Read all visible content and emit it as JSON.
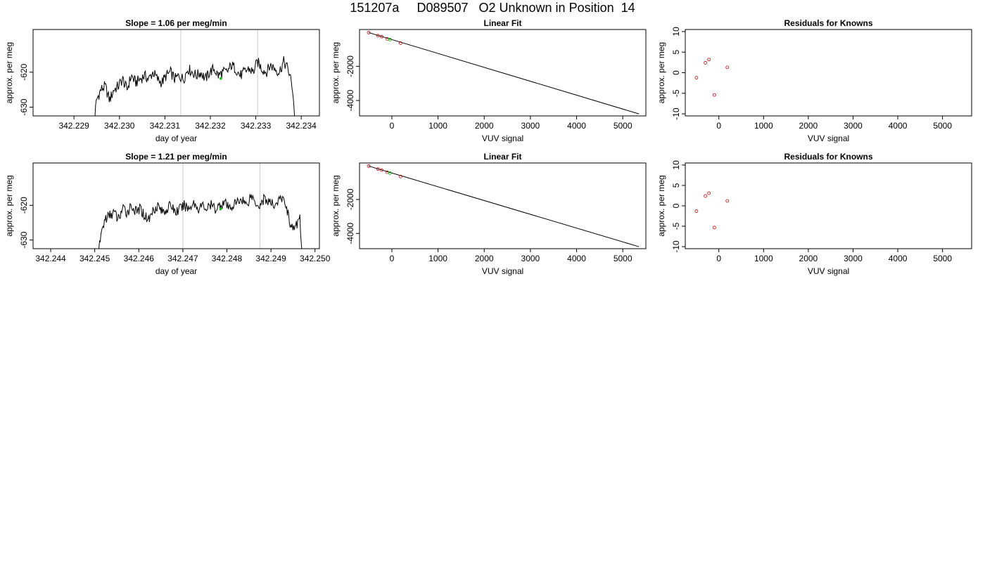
{
  "page": {
    "title": "151207a     D089507   O2 Unknown in Position  14"
  },
  "colors": {
    "line": "#000000",
    "marker_vline": "#cccccc",
    "known_points": "#cc0000",
    "unknown_point": "#00cc00",
    "frame": "#000000"
  },
  "chart_data": [
    {
      "id": "ts1",
      "type": "line",
      "title": "Slope =  1.06  per meg/min",
      "xlabel": "day of year",
      "ylabel": "approx. per meg",
      "xlim": [
        342.2281,
        342.2344
      ],
      "ylim": [
        -632.5,
        -607.8
      ],
      "xticks": [
        342.229,
        342.23,
        342.231,
        342.232,
        342.233,
        342.234
      ],
      "xtick_labels": [
        "342.229",
        "342.230",
        "342.231",
        "342.232",
        "342.233",
        "342.234"
      ],
      "yticks": [
        -630,
        -620
      ],
      "ytick_labels": [
        "-630",
        "-620"
      ],
      "x_start": 342.2294,
      "x_end": 342.2339,
      "vlines": [
        342.23135,
        342.23304
      ],
      "highlight_point": {
        "x": 342.23223,
        "y": -621.8
      },
      "profile": [
        -640,
        -628,
        -625,
        -624,
        -628,
        -625,
        -624,
        -622,
        -625,
        -621,
        -623,
        -622,
        -621,
        -622,
        -620,
        -622,
        -623,
        -621,
        -620,
        -622,
        -621,
        -622,
        -619,
        -620,
        -621,
        -620,
        -622,
        -620,
        -619,
        -621,
        -620,
        -620,
        -618,
        -619,
        -621,
        -620,
        -619,
        -620,
        -617,
        -619,
        -620,
        -618,
        -619,
        -620,
        -617,
        -619,
        -624,
        -640
      ],
      "grid": false
    },
    {
      "id": "fit1",
      "type": "scatter",
      "title": "Linear Fit",
      "xlabel": "VUV signal",
      "ylabel": "approx. per meg",
      "xlim": [
        -700,
        5500
      ],
      "ylim": [
        -4900,
        150
      ],
      "xticks": [
        0,
        1000,
        2000,
        3000,
        4000,
        5000
      ],
      "xtick_labels": [
        "0",
        "1000",
        "2000",
        "3000",
        "4000",
        "5000"
      ],
      "yticks": [
        -4000,
        -2000
      ],
      "ytick_labels": [
        "-4000",
        "-2000"
      ],
      "fit_line": {
        "x": [
          -500,
          5350
        ],
        "y": [
          -33,
          -4783
        ]
      },
      "known_points": [
        {
          "x": -500,
          "y": -33
        },
        {
          "x": -300,
          "y": -208
        },
        {
          "x": -220,
          "y": -268
        },
        {
          "x": -100,
          "y": -398
        },
        {
          "x": 190,
          "y": -648
        }
      ],
      "unknown_points": [
        {
          "x": -40,
          "y": -440
        }
      ],
      "grid": false
    },
    {
      "id": "res1",
      "type": "scatter",
      "title": "Residuals for Knowns",
      "xlabel": "VUV signal",
      "ylabel": "approx. per meg",
      "xlim": [
        -750,
        5650
      ],
      "ylim": [
        -10.5,
        10.5
      ],
      "xticks": [
        0,
        1000,
        2000,
        3000,
        4000,
        5000
      ],
      "xtick_labels": [
        "0",
        "1000",
        "2000",
        "3000",
        "4000",
        "5000"
      ],
      "yticks": [
        -10,
        -5,
        0,
        5,
        10
      ],
      "ytick_labels": [
        "-10",
        "-5",
        "0",
        "5",
        "10"
      ],
      "points": [
        {
          "x": -500,
          "y": -1.2
        },
        {
          "x": -300,
          "y": 2.4
        },
        {
          "x": -220,
          "y": 3.2
        },
        {
          "x": -100,
          "y": -5.4
        },
        {
          "x": 190,
          "y": 1.3
        }
      ],
      "grid": false
    },
    {
      "id": "ts2",
      "type": "line",
      "title": "Slope =  1.21  per meg/min",
      "xlabel": "day of year",
      "ylabel": "approx. per meg",
      "xlim": [
        342.2436,
        342.2501
      ],
      "ylim": [
        -632.5,
        -607.8
      ],
      "xticks": [
        342.244,
        342.245,
        342.246,
        342.247,
        342.248,
        342.249,
        342.25
      ],
      "xtick_labels": [
        "342.244",
        "342.245",
        "342.246",
        "342.247",
        "342.248",
        "342.249",
        "342.250"
      ],
      "yticks": [
        -630,
        -620
      ],
      "ytick_labels": [
        "-630",
        "-620"
      ],
      "x_start": 342.24503,
      "x_end": 342.24975,
      "vlines": [
        342.247,
        342.24875
      ],
      "highlight_point": {
        "x": 342.24786,
        "y": -621
      },
      "profile": [
        -640,
        -629,
        -624,
        -623,
        -622,
        -624,
        -621,
        -622,
        -620,
        -622,
        -621,
        -623,
        -624,
        -621,
        -620,
        -622,
        -621,
        -620,
        -622,
        -621,
        -620,
        -621,
        -619,
        -621,
        -620,
        -621,
        -620,
        -621,
        -620,
        -619,
        -621,
        -620,
        -619,
        -618,
        -620,
        -617,
        -619,
        -620,
        -618,
        -619,
        -620,
        -619,
        -618,
        -620,
        -626,
        -627,
        -623,
        -640
      ],
      "grid": false
    },
    {
      "id": "fit2",
      "type": "scatter",
      "title": "Linear Fit",
      "xlabel": "VUV signal",
      "ylabel": "approx. per meg",
      "xlim": [
        -700,
        5500
      ],
      "ylim": [
        -4900,
        150
      ],
      "xticks": [
        0,
        1000,
        2000,
        3000,
        4000,
        5000
      ],
      "xtick_labels": [
        "0",
        "1000",
        "2000",
        "3000",
        "4000",
        "5000"
      ],
      "yticks": [
        -4000,
        -2000
      ],
      "ytick_labels": [
        "-4000",
        "-2000"
      ],
      "fit_line": {
        "x": [
          -500,
          5350
        ],
        "y": [
          -33,
          -4783
        ]
      },
      "known_points": [
        {
          "x": -500,
          "y": -33
        },
        {
          "x": -300,
          "y": -208
        },
        {
          "x": -220,
          "y": -268
        },
        {
          "x": -100,
          "y": -398
        },
        {
          "x": 190,
          "y": -648
        }
      ],
      "unknown_points": [
        {
          "x": -40,
          "y": -440
        }
      ],
      "grid": false
    },
    {
      "id": "res2",
      "type": "scatter",
      "title": "Residuals for Knowns",
      "xlabel": "VUV signal",
      "ylabel": "approx. per meg",
      "xlim": [
        -750,
        5650
      ],
      "ylim": [
        -10.5,
        10.5
      ],
      "xticks": [
        0,
        1000,
        2000,
        3000,
        4000,
        5000
      ],
      "xtick_labels": [
        "0",
        "1000",
        "2000",
        "3000",
        "4000",
        "5000"
      ],
      "yticks": [
        -10,
        -5,
        0,
        5,
        10
      ],
      "ytick_labels": [
        "-10",
        "-5",
        "0",
        "5",
        "10"
      ],
      "points": [
        {
          "x": -500,
          "y": -1.3
        },
        {
          "x": -300,
          "y": 2.4
        },
        {
          "x": -220,
          "y": 3.1
        },
        {
          "x": -100,
          "y": -5.3
        },
        {
          "x": 190,
          "y": 1.2
        }
      ],
      "grid": false
    }
  ]
}
